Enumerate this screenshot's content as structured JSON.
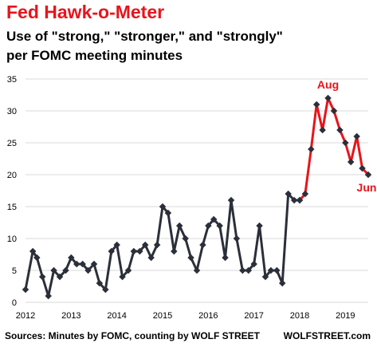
{
  "title": "Fed Hawk-o-Meter",
  "subtitle": [
    "Use of \"strong,\" \"stronger,\" and \"strongly\"",
    "per FOMC meeting minutes"
  ],
  "source": "Sources: Minutes by FOMC, counting by WOLF STREET",
  "credit": "WOLFSTREET.com",
  "colors": {
    "title": "#e8141c",
    "series_main": "#2b2f3a",
    "series_highlight": "#e8141c",
    "grid": "#d9d9d9",
    "text": "#000000"
  },
  "chart_data": {
    "type": "line",
    "title": "Fed Hawk-o-Meter",
    "subtitle": "Use of \"strong,\" \"stronger,\" and \"strongly\" per FOMC meeting minutes",
    "xlabel": "",
    "ylabel": "",
    "xlim": [
      2012.0,
      2019.5
    ],
    "ylim": [
      0,
      35
    ],
    "y_ticks": [
      0,
      5,
      10,
      15,
      20,
      25,
      30,
      35
    ],
    "x_ticks": [
      2012,
      2013,
      2014,
      2015,
      2016,
      2017,
      2018,
      2019
    ],
    "x_tick_labels": [
      "2012",
      "2013",
      "2014",
      "2015",
      "2016",
      "2017",
      "2018",
      "2019"
    ],
    "grid": "horizontal",
    "legend": "none",
    "series": [
      {
        "x": [
          2012.0,
          2012.16,
          2012.25,
          2012.37,
          2012.5,
          2012.62,
          2012.75,
          2012.88,
          2013.0,
          2013.12,
          2013.25,
          2013.37,
          2013.5,
          2013.62,
          2013.75,
          2013.88,
          2014.0,
          2014.12,
          2014.25,
          2014.37,
          2014.5,
          2014.62,
          2014.75,
          2014.88,
          2015.0,
          2015.12,
          2015.25,
          2015.37,
          2015.5,
          2015.62,
          2015.75,
          2015.88,
          2016.0,
          2016.12,
          2016.25,
          2016.37,
          2016.5,
          2016.62,
          2016.75,
          2016.88,
          2017.0,
          2017.12,
          2017.25,
          2017.37,
          2017.5,
          2017.62,
          2017.75,
          2017.88,
          2018.0
        ],
        "values": [
          2,
          8,
          7,
          4,
          1,
          5,
          4,
          5,
          7,
          6,
          6,
          5,
          6,
          3,
          2,
          8,
          9,
          4,
          5,
          8,
          8,
          9,
          7,
          9,
          15,
          14,
          8,
          12,
          10,
          7,
          5,
          9,
          12,
          13,
          12,
          7,
          16,
          10,
          5,
          5,
          6,
          12,
          4,
          5,
          5,
          3,
          17,
          16,
          16
        ]
      },
      {
        "x": [
          2018.0,
          2018.12,
          2018.25,
          2018.37,
          2018.5,
          2018.62,
          2018.75,
          2018.88,
          2019.0,
          2019.12,
          2019.25,
          2019.37,
          2019.5
        ],
        "values": [
          16,
          17,
          24,
          31,
          27,
          32,
          30,
          27,
          25,
          22,
          26,
          21,
          20
        ]
      }
    ],
    "annotations": [
      {
        "text": "Aug",
        "x": 2018.62,
        "y": 32
      },
      {
        "text": "Jun",
        "x": 2019.5,
        "y": 20
      }
    ]
  }
}
